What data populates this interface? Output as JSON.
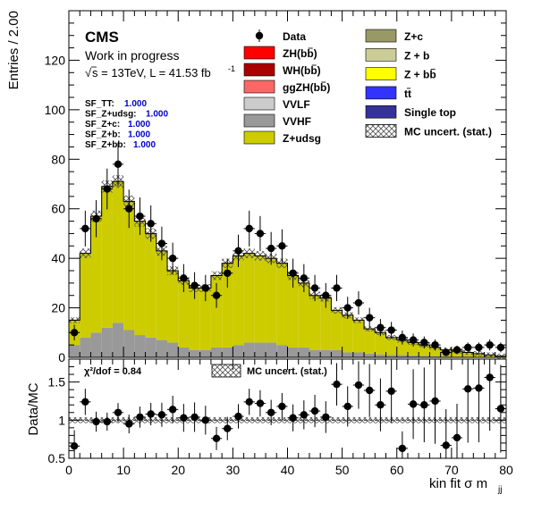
{
  "colors": {
    "zh_bb": "#ff0000",
    "wh_bb": "#aa0000",
    "ggzh_bb": "#ff6666",
    "vvlf": "#cccccc",
    "vvhf": "#999999",
    "z_udsg": "#cccc00",
    "z_c": "#999966",
    "z_b": "#cccc99",
    "z_bb": "#ffff00",
    "ttbar": "#3333ff",
    "single_top": "#333399",
    "data": "#000000"
  },
  "header": {
    "experiment": "CMS",
    "status": "Work in progress",
    "energy_lumi_prefix": "s = 13TeV, L = 41.53 fb",
    "energy_lumi_sup": "-1",
    "sqrt_symbol": "√"
  },
  "scale_factors": [
    {
      "name": "SF_TT:",
      "value": "1.000"
    },
    {
      "name": "SF_Z+udsg:",
      "value": "1.000"
    },
    {
      "name": "SF_Z+c:",
      "value": "1.000"
    },
    {
      "name": "SF_Z+b:",
      "value": "1.000"
    },
    {
      "name": "SF_Z+bb:",
      "value": "1.000"
    }
  ],
  "legend": {
    "left": [
      {
        "label": "Data",
        "style": "marker"
      },
      {
        "label": "ZH(bb)",
        "style": "box",
        "color": "zh_bb"
      },
      {
        "label": "WH(bb)",
        "style": "box",
        "color": "wh_bb"
      },
      {
        "label": "ggZH(bb)",
        "style": "box",
        "color": "ggzh_bb"
      },
      {
        "label": "VVLF",
        "style": "box",
        "color": "vvlf"
      },
      {
        "label": "VVHF",
        "style": "box",
        "color": "vvhf"
      },
      {
        "label": "Z+udsg",
        "style": "box",
        "color": "z_udsg"
      }
    ],
    "right": [
      {
        "label": "Z+c",
        "style": "box",
        "color": "z_c"
      },
      {
        "label": "Z + b",
        "style": "box",
        "color": "z_b"
      },
      {
        "label": "Z + bb",
        "style": "box",
        "color": "z_bb"
      },
      {
        "label": "tt",
        "style": "box",
        "color": "ttbar"
      },
      {
        "label": "Single top",
        "style": "box",
        "color": "single_top"
      },
      {
        "label": "MC uncert. (stat.)",
        "style": "hatch"
      }
    ]
  },
  "ratio_panel": {
    "chi2_text": "χ²/dof = 0.84",
    "legend_label": "MC uncert. (stat.)"
  },
  "chart_data": [
    {
      "type": "area",
      "subtype": "stacked_histogram_with_data_points",
      "ylabel": "Entries / 2.00",
      "xlim": [
        0,
        80
      ],
      "ylim": [
        0,
        140
      ],
      "yticks": [
        0,
        20,
        40,
        60,
        80,
        100,
        120
      ],
      "bin_width": 2,
      "x": [
        1,
        3,
        5,
        7,
        9,
        11,
        13,
        15,
        17,
        19,
        21,
        23,
        25,
        27,
        29,
        31,
        33,
        35,
        37,
        39,
        41,
        43,
        45,
        47,
        49,
        51,
        53,
        55,
        57,
        59,
        61,
        63,
        65,
        67,
        69,
        71,
        73,
        75,
        77,
        79
      ],
      "series": [
        {
          "name": "VVHF",
          "color": "vvhf",
          "values": [
            5,
            8,
            10,
            12,
            14,
            11,
            9,
            8,
            7,
            6,
            4,
            3,
            3,
            4,
            4,
            5,
            6,
            6,
            6,
            5,
            4,
            4,
            3,
            3,
            3,
            2,
            2,
            1.5,
            1.2,
            1,
            1,
            0.8,
            0.6,
            0.5,
            0.4,
            0.3,
            0.3,
            0.2,
            0.2,
            0.1
          ]
        },
        {
          "name": "Z+udsg",
          "color": "z_udsg",
          "values": [
            10,
            34,
            47,
            57,
            57,
            52,
            46,
            42,
            36,
            29,
            27,
            25,
            25,
            29,
            34,
            36,
            36,
            35,
            34,
            33,
            29,
            26,
            22,
            21,
            16,
            15,
            13,
            10,
            8.8,
            7,
            6,
            5.2,
            4.4,
            3.5,
            2.6,
            2.2,
            1.7,
            1.3,
            0.8,
            0.4
          ]
        }
      ],
      "mc_total": [
        15,
        42,
        57,
        69,
        71,
        63,
        55,
        50,
        43,
        35,
        31,
        28,
        28,
        33,
        38,
        41,
        42,
        41,
        40,
        38,
        33,
        30,
        25,
        24,
        19,
        17,
        15,
        11.5,
        10,
        8,
        7,
        6,
        5,
        4,
        3,
        2.5,
        2,
        1.5,
        1,
        0.5
      ],
      "data": {
        "name": "Data",
        "x": [
          1,
          3,
          5,
          7,
          9,
          11,
          13,
          15,
          17,
          19,
          21,
          23,
          25,
          27,
          29,
          31,
          33,
          35,
          37,
          39,
          41,
          43,
          45,
          47,
          49,
          51,
          53,
          55,
          57,
          59,
          61,
          63,
          65,
          67,
          69,
          71,
          73,
          75,
          77,
          79
        ],
        "values": [
          10,
          52,
          56,
          68,
          78,
          60,
          57,
          54,
          46,
          40,
          32,
          29,
          28,
          25,
          34,
          43,
          52,
          50,
          44,
          45,
          34,
          32,
          28,
          25,
          28,
          20,
          22,
          16,
          12,
          11,
          8,
          7,
          6,
          5,
          2,
          3,
          4,
          4,
          5,
          4
        ]
      }
    },
    {
      "type": "scatter",
      "subtype": "data_mc_ratio",
      "xlabel": "kin fit  σ m_jj",
      "xlabel_main": "kin fit  σ m",
      "xlabel_sub": "jj",
      "ylabel": "Data/MC",
      "xlim": [
        0,
        80
      ],
      "ylim": [
        0.5,
        1.8
      ],
      "yticks": [
        0.5,
        1,
        1.5
      ],
      "xticks": [
        0,
        10,
        20,
        30,
        40,
        50,
        60,
        70,
        80
      ],
      "x": [
        1,
        3,
        5,
        7,
        9,
        11,
        13,
        15,
        17,
        19,
        21,
        23,
        25,
        27,
        29,
        31,
        33,
        35,
        37,
        39,
        41,
        43,
        45,
        47,
        49,
        51,
        53,
        55,
        57,
        59,
        61,
        63,
        65,
        67,
        69,
        71,
        73,
        75,
        77,
        79
      ],
      "values": [
        0.66,
        1.24,
        0.98,
        0.98,
        1.1,
        0.95,
        1.04,
        1.08,
        1.07,
        1.14,
        1.03,
        1.04,
        1.0,
        0.76,
        0.89,
        1.05,
        1.24,
        1.22,
        1.1,
        1.18,
        1.03,
        1.07,
        1.12,
        1.04,
        1.47,
        1.18,
        1.46,
        1.39,
        1.2,
        1.38,
        0.63,
        1.21,
        1.2,
        1.25,
        0.67,
        0.77,
        1.41,
        1.42,
        1.56,
        1.15
      ],
      "mc_uncert_band": [
        0.96,
        1.04
      ]
    }
  ]
}
